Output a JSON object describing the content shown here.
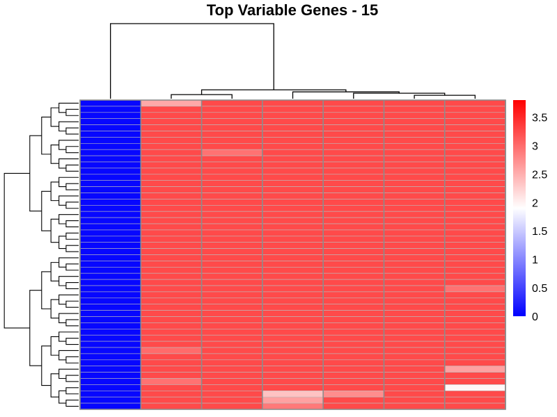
{
  "chart_data": {
    "type": "heatmap",
    "title": "Top Variable Genes - 15",
    "xlabel": "",
    "ylabel": "",
    "n_rows": 50,
    "n_cols": 7,
    "colorscale": {
      "min": 0,
      "mid": 1.9,
      "max": 3.8,
      "low_color": "#0000ff",
      "mid_color": "#ffffff",
      "high_color": "#ff0000"
    },
    "colorbar_ticks": [
      0,
      0.5,
      1,
      1.5,
      2,
      2.5,
      3,
      3.5
    ],
    "colorbar_tick_labels": [
      "0",
      "0.5",
      "1",
      "1.5",
      "2",
      "2.5",
      "3",
      "3.5"
    ],
    "column_dendrogram": [
      {
        "join": [
          5,
          6
        ],
        "height": 0.5
      },
      {
        "join": [
          4,
          7
        ],
        "height": 0.8
      },
      {
        "join": [
          8,
          3
        ],
        "height": 1.0
      },
      {
        "join": [
          1,
          2
        ],
        "height": 0.6
      },
      {
        "join": [
          10,
          9
        ],
        "height": 1.3
      },
      {
        "join": [
          0,
          11
        ],
        "height": 11.0
      }
    ],
    "row_dendrogram_depth": 6,
    "base_value": 3.25,
    "first_column_value": 0.05,
    "cell_overrides": [
      {
        "row": 0,
        "col": 1,
        "value": 2.55
      },
      {
        "row": 8,
        "col": 2,
        "value": 2.95
      },
      {
        "row": 30,
        "col": 6,
        "value": 2.95
      },
      {
        "row": 40,
        "col": 1,
        "value": 3.0
      },
      {
        "row": 43,
        "col": 6,
        "value": 2.6
      },
      {
        "row": 45,
        "col": 1,
        "value": 2.95
      },
      {
        "row": 46,
        "col": 6,
        "value": 1.95
      },
      {
        "row": 47,
        "col": 3,
        "value": 2.35
      },
      {
        "row": 47,
        "col": 4,
        "value": 2.75
      },
      {
        "row": 48,
        "col": 3,
        "value": 2.6
      },
      {
        "row": 49,
        "col": 3,
        "value": 2.9
      }
    ]
  }
}
